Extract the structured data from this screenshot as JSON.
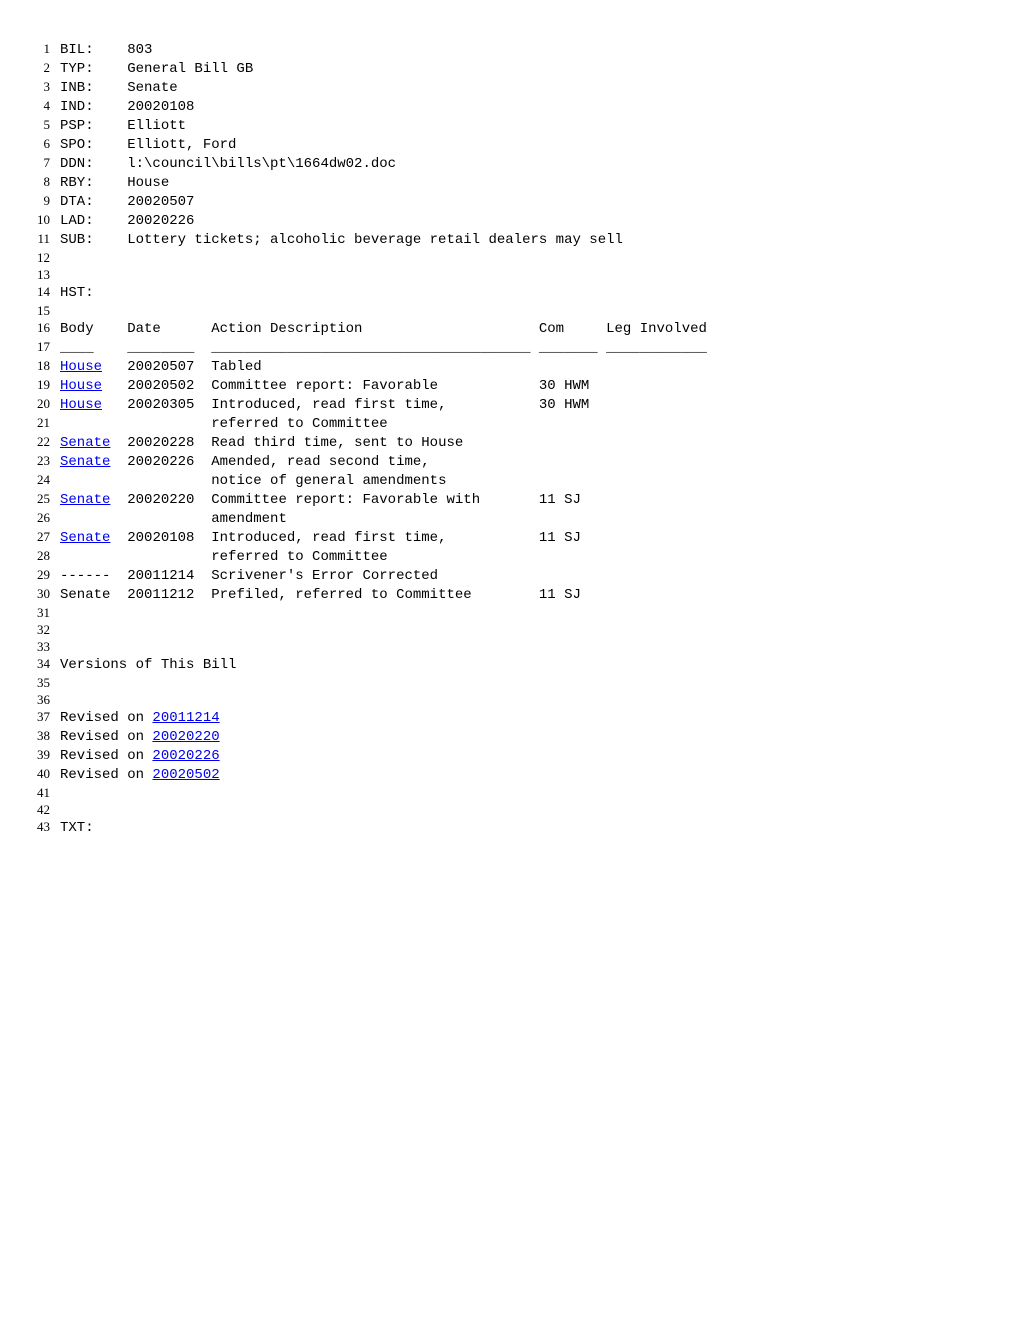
{
  "header": {
    "fields": [
      {
        "label": "BIL:",
        "value": "803"
      },
      {
        "label": "TYP:",
        "value": "General Bill GB"
      },
      {
        "label": "INB:",
        "value": "Senate"
      },
      {
        "label": "IND:",
        "value": "20020108"
      },
      {
        "label": "PSP:",
        "value": "Elliott"
      },
      {
        "label": "SPO:",
        "value": "Elliott, Ford"
      },
      {
        "label": "DDN:",
        "value": "l:\\council\\bills\\pt\\1664dw02.doc"
      },
      {
        "label": "RBY:",
        "value": "House"
      },
      {
        "label": "DTA:",
        "value": "20020507"
      },
      {
        "label": "LAD:",
        "value": "20020226"
      },
      {
        "label": "SUB:",
        "value": "Lottery tickets; alcoholic beverage retail dealers may sell"
      }
    ]
  },
  "hst_label": "HST:",
  "columns": {
    "body": "Body",
    "date": "Date",
    "action": "Action Description",
    "com": "Com",
    "leg": "Leg Involved"
  },
  "underline": {
    "body": "____",
    "date": "________",
    "action": "______________________________________",
    "com": "_______",
    "leg": "____________"
  },
  "history": [
    {
      "body": "House",
      "link": true,
      "date": "20020507",
      "action1": "Tabled",
      "action2": "",
      "com": ""
    },
    {
      "body": "House",
      "link": true,
      "date": "20020502",
      "action1": "Committee report: Favorable",
      "action2": "",
      "com": "30 HWM"
    },
    {
      "body": "House",
      "link": true,
      "date": "20020305",
      "action1": "Introduced, read first time,",
      "action2": "referred to Committee",
      "com": "30 HWM"
    },
    {
      "body": "Senate",
      "link": true,
      "date": "20020228",
      "action1": "Read third time, sent to House",
      "action2": "",
      "com": ""
    },
    {
      "body": "Senate",
      "link": true,
      "date": "20020226",
      "action1": "Amended, read second time,",
      "action2": "notice of general amendments",
      "com": ""
    },
    {
      "body": "Senate",
      "link": true,
      "date": "20020220",
      "action1": "Committee report: Favorable with",
      "action2": "amendment",
      "com": "11 SJ"
    },
    {
      "body": "Senate",
      "link": true,
      "date": "20020108",
      "action1": "Introduced, read first time,",
      "action2": "referred to Committee",
      "com": "11 SJ"
    },
    {
      "body": "------",
      "link": false,
      "date": "20011214",
      "action1": "Scrivener's Error Corrected",
      "action2": "",
      "com": ""
    },
    {
      "body": "Senate",
      "link": false,
      "date": "20011212",
      "action1": "Prefiled, referred to Committee",
      "action2": "",
      "com": "11 SJ"
    }
  ],
  "versions_title": "Versions of This Bill",
  "versions": [
    {
      "prefix": "Revised on ",
      "date": "20011214"
    },
    {
      "prefix": "Revised on ",
      "date": "20020220"
    },
    {
      "prefix": "Revised on ",
      "date": "20020226"
    },
    {
      "prefix": "Revised on ",
      "date": "20020502"
    }
  ],
  "txt_label": "TXT:",
  "layout": {
    "col_body": 8,
    "col_date": 10,
    "col_action": 39,
    "col_com": 8
  }
}
